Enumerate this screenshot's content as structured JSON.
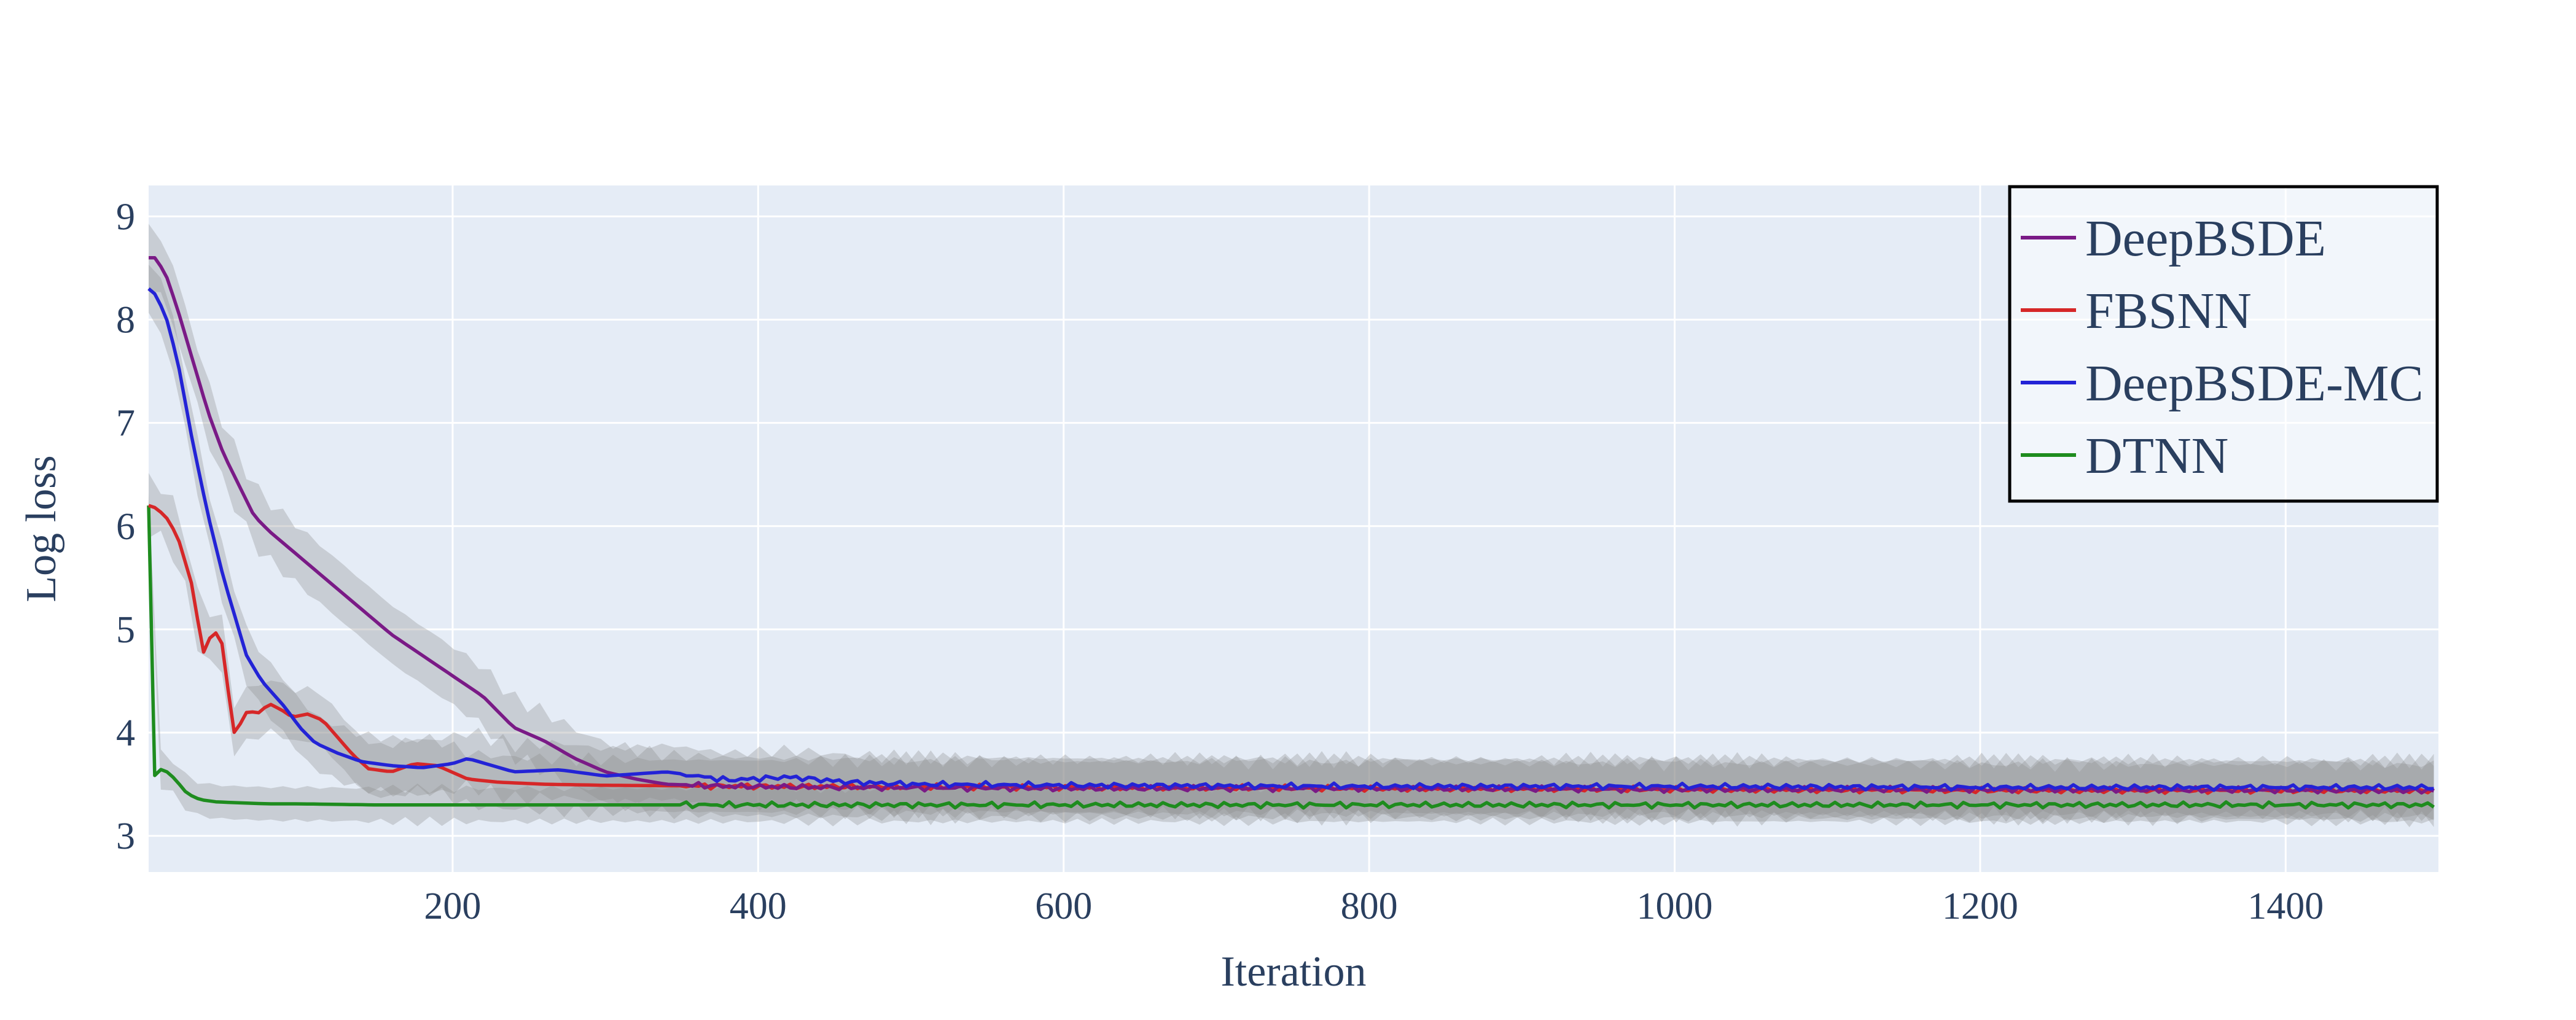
{
  "chart_data": {
    "type": "line",
    "title": "",
    "xlabel": "Iteration",
    "ylabel": "Log loss",
    "xlim": [
      1,
      1500
    ],
    "ylim": [
      2.65,
      9.3
    ],
    "xticks": [
      200,
      400,
      600,
      800,
      1000,
      1200,
      1400
    ],
    "yticks": [
      3,
      4,
      5,
      6,
      7,
      8,
      9
    ],
    "grid": true,
    "plot_background": "#e5ecf6",
    "band_color": "#8c8c8c",
    "legend": {
      "placement": "top-right",
      "border": true
    },
    "series": [
      {
        "name": "DeepBSDE",
        "color": "#7a1a86",
        "band_width": 0.28,
        "points": [
          [
            1,
            8.6
          ],
          [
            5,
            8.6
          ],
          [
            12,
            8.45
          ],
          [
            20,
            8.1
          ],
          [
            30,
            7.6
          ],
          [
            40,
            7.1
          ],
          [
            50,
            6.7
          ],
          [
            60,
            6.4
          ],
          [
            70,
            6.1
          ],
          [
            80,
            5.95
          ],
          [
            100,
            5.7
          ],
          [
            120,
            5.45
          ],
          [
            140,
            5.2
          ],
          [
            160,
            4.95
          ],
          [
            180,
            4.75
          ],
          [
            200,
            4.55
          ],
          [
            220,
            4.35
          ],
          [
            240,
            4.05
          ],
          [
            260,
            3.92
          ],
          [
            280,
            3.75
          ],
          [
            300,
            3.62
          ],
          [
            320,
            3.55
          ],
          [
            340,
            3.5
          ],
          [
            380,
            3.48
          ],
          [
            450,
            3.47
          ],
          [
            600,
            3.46
          ],
          [
            800,
            3.46
          ],
          [
            1000,
            3.45
          ],
          [
            1200,
            3.45
          ],
          [
            1500,
            3.44
          ]
        ]
      },
      {
        "name": "FBSNN",
        "color": "#d62728",
        "band_width": 0.25,
        "points": [
          [
            1,
            6.2
          ],
          [
            5,
            6.18
          ],
          [
            12,
            6.1
          ],
          [
            20,
            5.9
          ],
          [
            30,
            5.4
          ],
          [
            35,
            4.9
          ],
          [
            38,
            4.72
          ],
          [
            42,
            4.98
          ],
          [
            48,
            4.95
          ],
          [
            52,
            4.6
          ],
          [
            55,
            4.05
          ],
          [
            58,
            3.98
          ],
          [
            62,
            4.12
          ],
          [
            66,
            4.22
          ],
          [
            72,
            4.18
          ],
          [
            80,
            4.28
          ],
          [
            88,
            4.22
          ],
          [
            95,
            4.15
          ],
          [
            105,
            4.18
          ],
          [
            115,
            4.12
          ],
          [
            125,
            3.95
          ],
          [
            135,
            3.78
          ],
          [
            145,
            3.65
          ],
          [
            160,
            3.62
          ],
          [
            175,
            3.7
          ],
          [
            190,
            3.68
          ],
          [
            210,
            3.55
          ],
          [
            230,
            3.52
          ],
          [
            260,
            3.5
          ],
          [
            300,
            3.49
          ],
          [
            400,
            3.48
          ],
          [
            600,
            3.47
          ],
          [
            800,
            3.46
          ],
          [
            1000,
            3.45
          ],
          [
            1200,
            3.44
          ],
          [
            1500,
            3.44
          ]
        ]
      },
      {
        "name": "DeepBSDE-MC",
        "color": "#2323d6",
        "band_width": 0.26,
        "points": [
          [
            1,
            8.3
          ],
          [
            5,
            8.25
          ],
          [
            12,
            8.05
          ],
          [
            20,
            7.6
          ],
          [
            30,
            6.8
          ],
          [
            40,
            6.1
          ],
          [
            50,
            5.5
          ],
          [
            60,
            5.0
          ],
          [
            65,
            4.75
          ],
          [
            75,
            4.5
          ],
          [
            90,
            4.25
          ],
          [
            100,
            4.05
          ],
          [
            110,
            3.9
          ],
          [
            125,
            3.8
          ],
          [
            140,
            3.72
          ],
          [
            160,
            3.68
          ],
          [
            180,
            3.66
          ],
          [
            200,
            3.7
          ],
          [
            210,
            3.75
          ],
          [
            240,
            3.62
          ],
          [
            270,
            3.64
          ],
          [
            300,
            3.58
          ],
          [
            340,
            3.62
          ],
          [
            380,
            3.54
          ],
          [
            420,
            3.57
          ],
          [
            460,
            3.52
          ],
          [
            500,
            3.5
          ],
          [
            600,
            3.49
          ],
          [
            800,
            3.48
          ],
          [
            1000,
            3.48
          ],
          [
            1200,
            3.47
          ],
          [
            1400,
            3.47
          ],
          [
            1500,
            3.47
          ]
        ]
      },
      {
        "name": "DTNN",
        "color": "#1e8c1e",
        "band_width": 0.16,
        "points": [
          [
            1,
            6.2
          ],
          [
            2,
            3.55
          ],
          [
            4,
            3.55
          ],
          [
            6,
            3.62
          ],
          [
            10,
            3.65
          ],
          [
            15,
            3.6
          ],
          [
            20,
            3.52
          ],
          [
            25,
            3.43
          ],
          [
            30,
            3.38
          ],
          [
            35,
            3.35
          ],
          [
            45,
            3.33
          ],
          [
            60,
            3.32
          ],
          [
            80,
            3.31
          ],
          [
            100,
            3.31
          ],
          [
            150,
            3.3
          ],
          [
            200,
            3.3
          ],
          [
            300,
            3.3
          ],
          [
            500,
            3.3
          ],
          [
            800,
            3.3
          ],
          [
            1000,
            3.3
          ],
          [
            1200,
            3.3
          ],
          [
            1500,
            3.3
          ]
        ]
      }
    ]
  }
}
